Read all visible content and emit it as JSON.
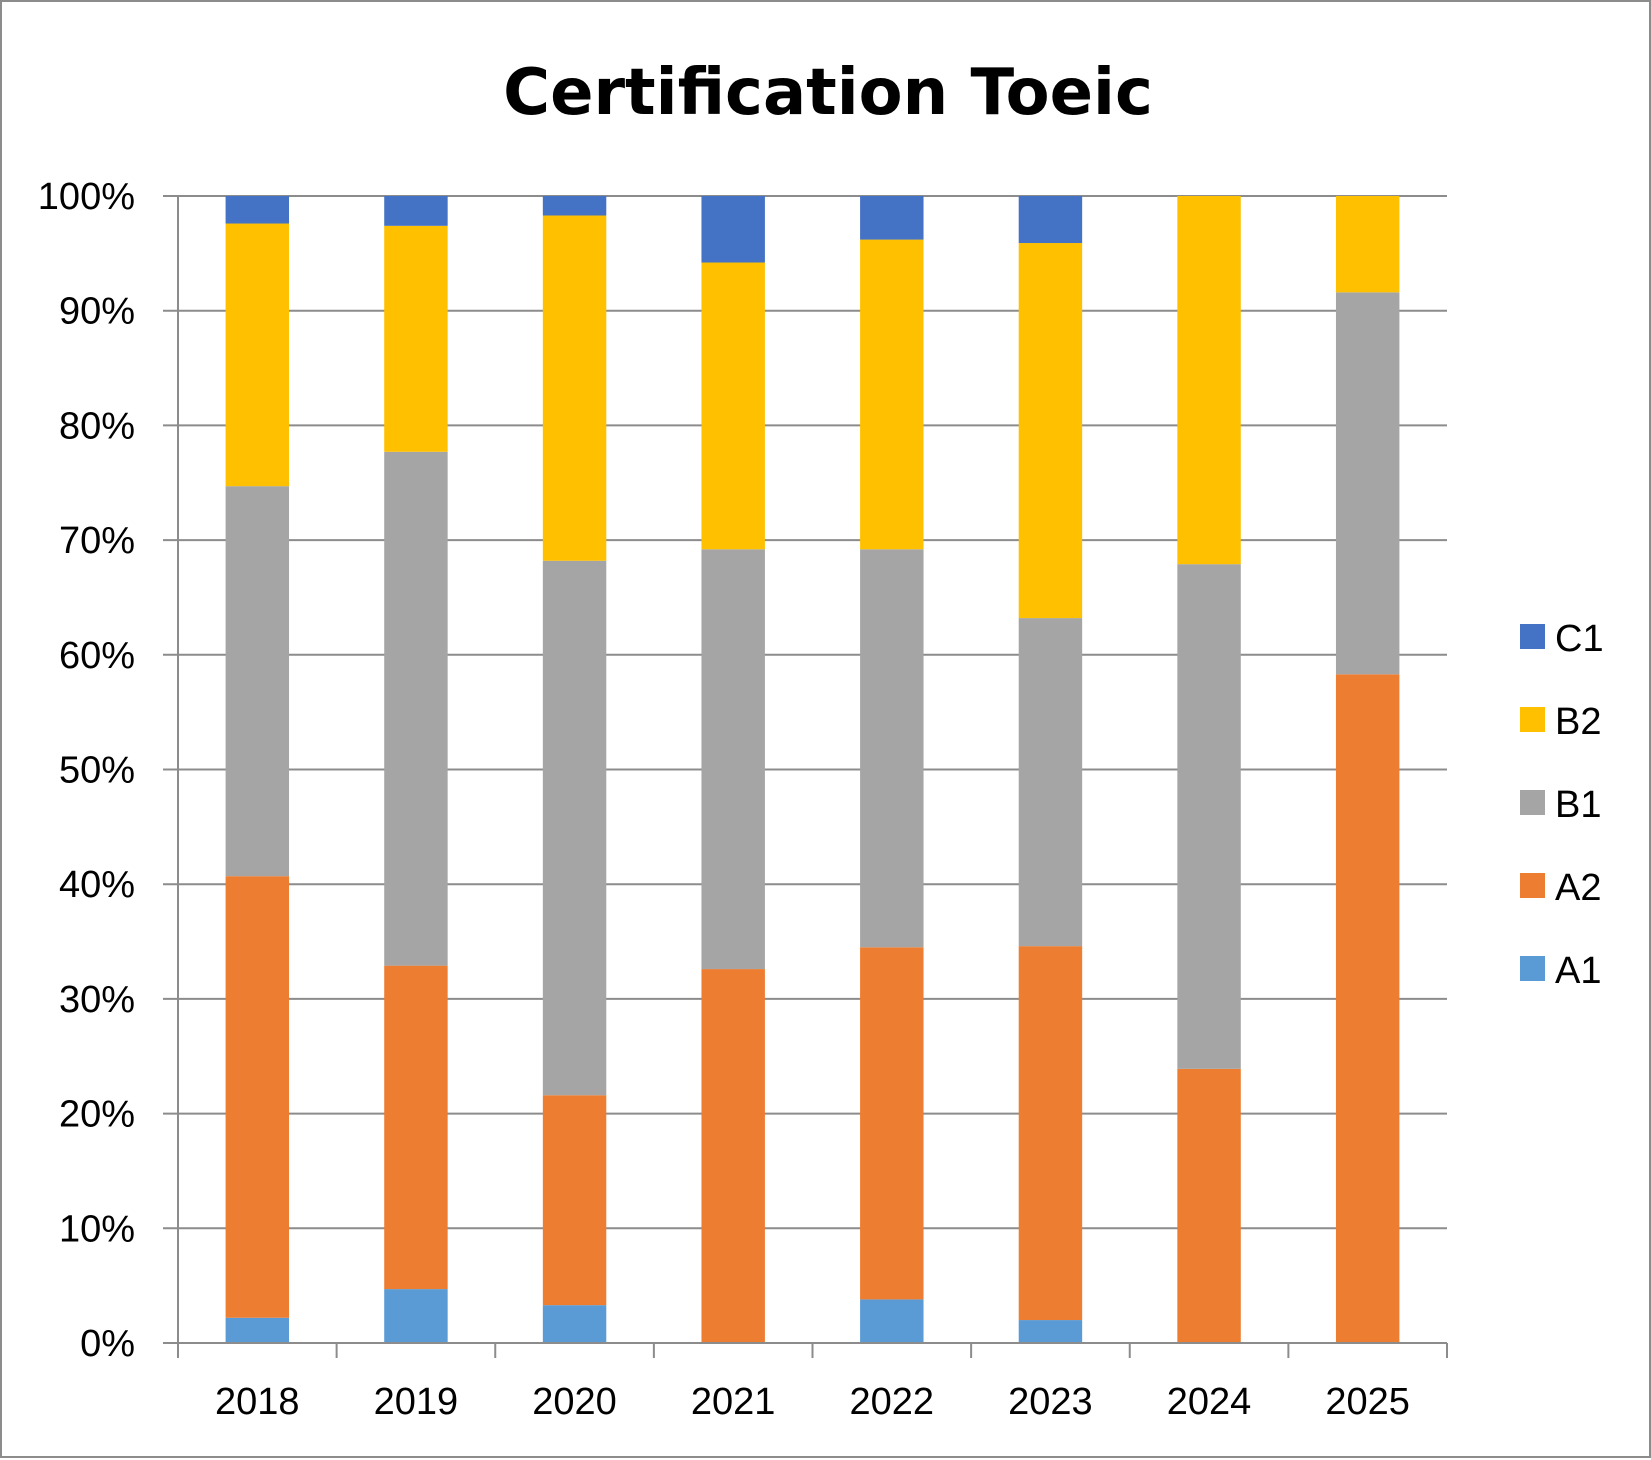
{
  "chart_data": {
    "type": "bar",
    "stacked": "percent",
    "title": "Certification Toeic",
    "xlabel": "",
    "ylabel": "",
    "categories": [
      "2018",
      "2019",
      "2020",
      "2021",
      "2022",
      "2023",
      "2024",
      "2025"
    ],
    "series": [
      {
        "name": "A1",
        "color": "#5b9bd5",
        "values": [
          2.2,
          4.7,
          3.3,
          0.0,
          3.8,
          2.0,
          0.0,
          0.0
        ]
      },
      {
        "name": "A2",
        "color": "#ed7d31",
        "values": [
          38.5,
          28.2,
          18.3,
          32.6,
          30.7,
          32.6,
          23.9,
          58.3
        ]
      },
      {
        "name": "B1",
        "color": "#a5a5a5",
        "values": [
          34.0,
          44.8,
          46.6,
          36.6,
          34.7,
          28.6,
          44.0,
          33.3
        ]
      },
      {
        "name": "B2",
        "color": "#ffc000",
        "values": [
          22.9,
          19.7,
          30.1,
          25.0,
          27.0,
          32.7,
          32.1,
          8.4
        ]
      },
      {
        "name": "C1",
        "color": "#4472c4",
        "values": [
          2.4,
          2.6,
          1.7,
          5.8,
          3.8,
          4.1,
          0.0,
          0.0
        ]
      }
    ],
    "ylim": [
      0,
      100
    ],
    "yticks": [
      "0%",
      "10%",
      "20%",
      "30%",
      "40%",
      "50%",
      "60%",
      "70%",
      "80%",
      "90%",
      "100%"
    ],
    "grid": true,
    "legend": {
      "placement": "right",
      "order": [
        "C1",
        "B2",
        "B1",
        "A2",
        "A1"
      ]
    },
    "colors": {
      "gridline": "#8c8c8c",
      "axis": "#8c8c8c",
      "border": "#8c8c8c"
    }
  }
}
